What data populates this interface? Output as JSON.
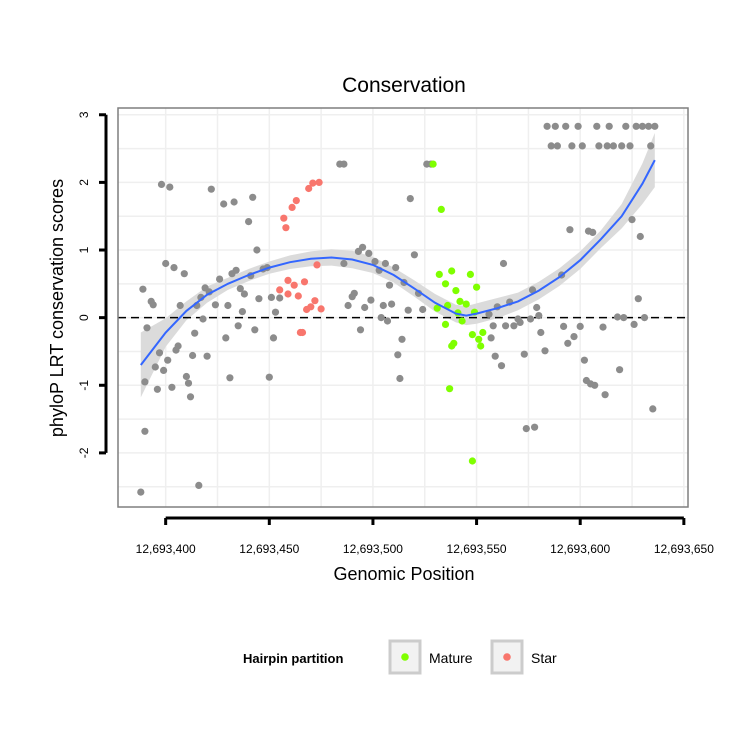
{
  "chart_data": {
    "type": "scatter",
    "title": "Conservation",
    "xlabel": "Genomic Position",
    "ylabel": "phyloP LRT conservation scores",
    "xlim": [
      12693377,
      12693652
    ],
    "ylim": [
      -2.8,
      3.1
    ],
    "x_ticks": [
      12693400,
      12693450,
      12693500,
      12693550,
      12693600,
      12693650
    ],
    "x_tick_labels": [
      "12,693,400",
      "12,693,450",
      "12,693,500",
      "12,693,550",
      "12,693,600",
      "12,693,650"
    ],
    "y_ticks": [
      -2,
      -1,
      0,
      1,
      2,
      3
    ],
    "y_tick_labels": [
      "-2",
      "-1",
      "0",
      "1",
      "2",
      "3"
    ],
    "reference_line": {
      "y": 0,
      "style": "dashed"
    },
    "grid": true,
    "legend": {
      "title": "Hairpin partition",
      "placement": "bottom",
      "entries": [
        {
          "label": "Mature",
          "color": "#7fff00"
        },
        {
          "label": "Star",
          "color": "#f8766d"
        }
      ]
    },
    "colors": {
      "other": "#8c8c8c",
      "mature": "#7fff00",
      "star": "#f8766d",
      "smooth": "#3366ff",
      "band": "#d9d9d9"
    },
    "series": [
      {
        "name": "Other",
        "points": [
          [
            12693388,
            -2.58
          ],
          [
            12693389,
            0.42
          ],
          [
            12693390,
            -1.68
          ],
          [
            12693390,
            -0.95
          ],
          [
            12693391,
            -0.15
          ],
          [
            12693393,
            0.24
          ],
          [
            12693394,
            0.19
          ],
          [
            12693395,
            -0.73
          ],
          [
            12693396,
            -1.06
          ],
          [
            12693397,
            -0.52
          ],
          [
            12693398,
            1.97
          ],
          [
            12693399,
            -0.78
          ],
          [
            12693400,
            0.8
          ],
          [
            12693401,
            -0.63
          ],
          [
            12693402,
            1.93
          ],
          [
            12693403,
            -1.03
          ],
          [
            12693404,
            0.74
          ],
          [
            12693405,
            -0.48
          ],
          [
            12693406,
            -0.42
          ],
          [
            12693407,
            0.18
          ],
          [
            12693409,
            0.65
          ],
          [
            12693410,
            -0.87
          ],
          [
            12693411,
            -0.97
          ],
          [
            12693412,
            -1.17
          ],
          [
            12693413,
            -0.56
          ],
          [
            12693414,
            -0.23
          ],
          [
            12693415,
            0.18
          ],
          [
            12693416,
            -2.48
          ],
          [
            12693417,
            0.3
          ],
          [
            12693418,
            -0.02
          ],
          [
            12693419,
            0.44
          ],
          [
            12693420,
            -0.57
          ],
          [
            12693421,
            0.38
          ],
          [
            12693422,
            1.9
          ],
          [
            12693424,
            0.19
          ],
          [
            12693426,
            0.57
          ],
          [
            12693428,
            1.68
          ],
          [
            12693429,
            -0.3
          ],
          [
            12693430,
            0.18
          ],
          [
            12693431,
            -0.89
          ],
          [
            12693432,
            0.65
          ],
          [
            12693433,
            1.71
          ],
          [
            12693434,
            0.7
          ],
          [
            12693435,
            -0.12
          ],
          [
            12693436,
            0.43
          ],
          [
            12693437,
            0.09
          ],
          [
            12693438,
            0.35
          ],
          [
            12693440,
            1.42
          ],
          [
            12693441,
            0.62
          ],
          [
            12693442,
            1.78
          ],
          [
            12693443,
            -0.18
          ],
          [
            12693444,
            1.0
          ],
          [
            12693445,
            0.28
          ],
          [
            12693447,
            0.72
          ],
          [
            12693449,
            0.74
          ],
          [
            12693450,
            -0.88
          ],
          [
            12693451,
            0.3
          ],
          [
            12693452,
            -0.3
          ],
          [
            12693453,
            0.08
          ],
          [
            12693455,
            0.29
          ],
          [
            12693484,
            2.27
          ],
          [
            12693486,
            2.27
          ],
          [
            12693486,
            0.8
          ],
          [
            12693488,
            0.18
          ],
          [
            12693490,
            0.31
          ],
          [
            12693491,
            0.36
          ],
          [
            12693493,
            0.98
          ],
          [
            12693494,
            -0.18
          ],
          [
            12693495,
            1.04
          ],
          [
            12693496,
            0.15
          ],
          [
            12693498,
            0.95
          ],
          [
            12693499,
            0.26
          ],
          [
            12693501,
            0.83
          ],
          [
            12693503,
            0.7
          ],
          [
            12693504,
            0.0
          ],
          [
            12693505,
            0.18
          ],
          [
            12693506,
            0.8
          ],
          [
            12693507,
            -0.05
          ],
          [
            12693508,
            0.48
          ],
          [
            12693509,
            0.2
          ],
          [
            12693511,
            0.74
          ],
          [
            12693512,
            -0.55
          ],
          [
            12693513,
            -0.9
          ],
          [
            12693514,
            -0.32
          ],
          [
            12693515,
            0.52
          ],
          [
            12693517,
            0.11
          ],
          [
            12693518,
            1.76
          ],
          [
            12693520,
            0.93
          ],
          [
            12693522,
            0.36
          ],
          [
            12693524,
            0.12
          ],
          [
            12693526,
            2.27
          ],
          [
            12693528,
            2.27
          ],
          [
            12693556,
            0.05
          ],
          [
            12693557,
            -0.3
          ],
          [
            12693558,
            -0.12
          ],
          [
            12693559,
            -0.57
          ],
          [
            12693560,
            0.16
          ],
          [
            12693562,
            -0.71
          ],
          [
            12693563,
            0.8
          ],
          [
            12693564,
            -0.12
          ],
          [
            12693566,
            0.23
          ],
          [
            12693568,
            -0.12
          ],
          [
            12693570,
            -0.02
          ],
          [
            12693571,
            -0.07
          ],
          [
            12693573,
            -0.54
          ],
          [
            12693574,
            -1.64
          ],
          [
            12693576,
            -0.02
          ],
          [
            12693577,
            0.41
          ],
          [
            12693578,
            -1.62
          ],
          [
            12693579,
            0.15
          ],
          [
            12693580,
            0.03
          ],
          [
            12693581,
            -0.22
          ],
          [
            12693583,
            -0.49
          ],
          [
            12693584,
            2.83
          ],
          [
            12693586,
            2.54
          ],
          [
            12693588,
            2.83
          ],
          [
            12693589,
            2.54
          ],
          [
            12693591,
            0.63
          ],
          [
            12693592,
            -0.13
          ],
          [
            12693593,
            2.83
          ],
          [
            12693594,
            -0.38
          ],
          [
            12693595,
            1.3
          ],
          [
            12693596,
            2.54
          ],
          [
            12693597,
            -0.28
          ],
          [
            12693599,
            2.83
          ],
          [
            12693600,
            -0.13
          ],
          [
            12693601,
            2.54
          ],
          [
            12693602,
            -0.63
          ],
          [
            12693603,
            -0.93
          ],
          [
            12693604,
            1.28
          ],
          [
            12693605,
            -0.98
          ],
          [
            12693606,
            1.26
          ],
          [
            12693607,
            -1.0
          ],
          [
            12693608,
            2.83
          ],
          [
            12693609,
            2.54
          ],
          [
            12693611,
            -0.14
          ],
          [
            12693612,
            -1.14
          ],
          [
            12693613,
            2.54
          ],
          [
            12693614,
            2.83
          ],
          [
            12693616,
            2.54
          ],
          [
            12693618,
            0.01
          ],
          [
            12693619,
            -0.77
          ],
          [
            12693620,
            2.54
          ],
          [
            12693621,
            0.0
          ],
          [
            12693622,
            2.83
          ],
          [
            12693624,
            2.54
          ],
          [
            12693625,
            1.45
          ],
          [
            12693626,
            -0.1
          ],
          [
            12693627,
            2.83
          ],
          [
            12693628,
            0.28
          ],
          [
            12693629,
            1.2
          ],
          [
            12693630,
            2.83
          ],
          [
            12693631,
            0.0
          ],
          [
            12693633,
            2.83
          ],
          [
            12693634,
            2.54
          ],
          [
            12693635,
            -1.35
          ],
          [
            12693636,
            2.83
          ]
        ]
      },
      {
        "name": "Mature",
        "points": [
          [
            12693529,
            2.27
          ],
          [
            12693531,
            0.14
          ],
          [
            12693532,
            0.64
          ],
          [
            12693533,
            1.6
          ],
          [
            12693535,
            0.5
          ],
          [
            12693535,
            -0.1
          ],
          [
            12693536,
            0.18
          ],
          [
            12693537,
            -1.05
          ],
          [
            12693538,
            0.69
          ],
          [
            12693538,
            -0.42
          ],
          [
            12693539,
            -0.38
          ],
          [
            12693540,
            0.4
          ],
          [
            12693541,
            0.07
          ],
          [
            12693542,
            0.24
          ],
          [
            12693543,
            -0.05
          ],
          [
            12693545,
            0.2
          ],
          [
            12693547,
            0.64
          ],
          [
            12693548,
            -0.25
          ],
          [
            12693548,
            -2.12
          ],
          [
            12693549,
            0.08
          ],
          [
            12693550,
            0.45
          ],
          [
            12693551,
            -0.32
          ],
          [
            12693552,
            -0.42
          ],
          [
            12693553,
            -0.22
          ]
        ]
      },
      {
        "name": "Star",
        "points": [
          [
            12693455,
            0.41
          ],
          [
            12693457,
            1.47
          ],
          [
            12693458,
            1.33
          ],
          [
            12693459,
            0.35
          ],
          [
            12693459,
            0.55
          ],
          [
            12693461,
            1.63
          ],
          [
            12693462,
            0.48
          ],
          [
            12693463,
            1.73
          ],
          [
            12693464,
            0.32
          ],
          [
            12693465,
            -0.22
          ],
          [
            12693466,
            -0.22
          ],
          [
            12693467,
            0.53
          ],
          [
            12693468,
            0.12
          ],
          [
            12693469,
            1.91
          ],
          [
            12693470,
            0.16
          ],
          [
            12693471,
            1.99
          ],
          [
            12693472,
            0.25
          ],
          [
            12693473,
            0.78
          ],
          [
            12693474,
            2.0
          ],
          [
            12693475,
            0.13
          ]
        ]
      }
    ],
    "smooth": {
      "x": [
        12693388,
        12693400,
        12693410,
        12693420,
        12693430,
        12693440,
        12693450,
        12693460,
        12693470,
        12693480,
        12693490,
        12693500,
        12693510,
        12693520,
        12693530,
        12693540,
        12693545,
        12693550,
        12693560,
        12693570,
        12693580,
        12693590,
        12693600,
        12693610,
        12693620,
        12693630,
        12693636
      ],
      "y": [
        -0.7,
        -0.22,
        0.1,
        0.34,
        0.5,
        0.63,
        0.74,
        0.82,
        0.87,
        0.89,
        0.86,
        0.78,
        0.63,
        0.43,
        0.22,
        0.06,
        0.03,
        0.06,
        0.14,
        0.24,
        0.4,
        0.6,
        0.85,
        1.16,
        1.5,
        1.98,
        2.33
      ],
      "lo": [
        -1.18,
        -0.43,
        -0.04,
        0.22,
        0.41,
        0.54,
        0.65,
        0.72,
        0.76,
        0.77,
        0.73,
        0.66,
        0.52,
        0.31,
        0.09,
        -0.07,
        -0.11,
        -0.09,
        -0.01,
        0.11,
        0.27,
        0.47,
        0.72,
        1.03,
        1.32,
        1.68,
        1.93
      ],
      "hi": [
        -0.22,
        -0.01,
        0.24,
        0.46,
        0.59,
        0.72,
        0.83,
        0.92,
        0.98,
        1.01,
        0.99,
        0.9,
        0.74,
        0.55,
        0.35,
        0.19,
        0.17,
        0.21,
        0.29,
        0.37,
        0.53,
        0.73,
        0.98,
        1.29,
        1.68,
        2.28,
        2.73
      ]
    }
  }
}
